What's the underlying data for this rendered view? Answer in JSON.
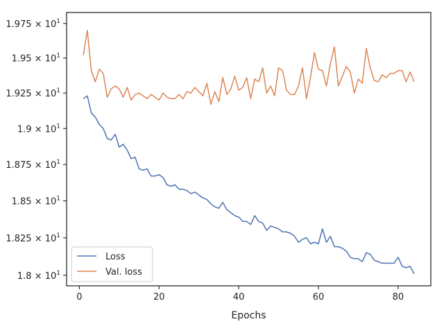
{
  "chart_data": {
    "type": "line",
    "title": "",
    "xlabel": "Epochs",
    "ylabel": "",
    "xlim": [
      -3.2,
      88.2
    ],
    "ylim": [
      17.93,
      19.83
    ],
    "xticks": [
      0,
      20,
      40,
      60,
      80
    ],
    "xtick_labels": [
      "0",
      "20",
      "40",
      "60",
      "80"
    ],
    "yticks": [
      18.0,
      18.25,
      18.5,
      18.75,
      19.0,
      19.25,
      19.5,
      19.75
    ],
    "ytick_labels": [
      {
        "mantissa": "1.8",
        "base": "× 10",
        "exp": "1"
      },
      {
        "mantissa": "1.825",
        "base": "× 10",
        "exp": "1"
      },
      {
        "mantissa": "1.85",
        "base": "× 10",
        "exp": "1"
      },
      {
        "mantissa": "1.875",
        "base": "× 10",
        "exp": "1"
      },
      {
        "mantissa": "1.9",
        "base": "× 10",
        "exp": "1"
      },
      {
        "mantissa": "1.925",
        "base": "× 10",
        "exp": "1"
      },
      {
        "mantissa": "1.95",
        "base": "× 10",
        "exp": "1"
      },
      {
        "mantissa": "1.975",
        "base": "× 10",
        "exp": "1"
      }
    ],
    "yscale": "log",
    "grid": false,
    "legend_position": "lower-left",
    "x": [
      1,
      2,
      3,
      4,
      5,
      6,
      7,
      8,
      9,
      10,
      11,
      12,
      13,
      14,
      15,
      16,
      17,
      18,
      19,
      20,
      21,
      22,
      23,
      24,
      25,
      26,
      27,
      28,
      29,
      30,
      31,
      32,
      33,
      34,
      35,
      36,
      37,
      38,
      39,
      40,
      41,
      42,
      43,
      44,
      45,
      46,
      47,
      48,
      49,
      50,
      51,
      52,
      53,
      54,
      55,
      56,
      57,
      58,
      59,
      60,
      61,
      62,
      63,
      64,
      65,
      66,
      67,
      68,
      69,
      70,
      71,
      72,
      73,
      74,
      75,
      76,
      77,
      78,
      79,
      80,
      81,
      82,
      83,
      84
    ],
    "series": [
      {
        "name": "Loss",
        "color": "#4c72b0",
        "values": [
          19.21,
          19.23,
          19.11,
          19.08,
          19.03,
          19.0,
          18.93,
          18.92,
          18.96,
          18.87,
          18.89,
          18.85,
          18.79,
          18.8,
          18.72,
          18.71,
          18.72,
          18.67,
          18.67,
          18.68,
          18.66,
          18.61,
          18.6,
          18.61,
          18.58,
          18.58,
          18.57,
          18.55,
          18.56,
          18.54,
          18.52,
          18.51,
          18.48,
          18.46,
          18.45,
          18.49,
          18.44,
          18.42,
          18.4,
          18.39,
          18.36,
          18.36,
          18.34,
          18.4,
          18.36,
          18.35,
          18.3,
          18.33,
          18.32,
          18.31,
          18.29,
          18.29,
          18.28,
          18.26,
          18.22,
          18.24,
          18.25,
          18.21,
          18.22,
          18.21,
          18.31,
          18.22,
          18.26,
          18.19,
          18.19,
          18.18,
          18.16,
          18.12,
          18.11,
          18.11,
          18.09,
          18.15,
          18.14,
          18.1,
          18.09,
          18.08,
          18.08,
          18.08,
          18.08,
          18.12,
          18.06,
          18.05,
          18.06,
          18.01
        ]
      },
      {
        "name": "Val. loss",
        "color": "#dd8452",
        "values": [
          19.52,
          19.7,
          19.41,
          19.33,
          19.42,
          19.39,
          19.22,
          19.28,
          19.3,
          19.28,
          19.22,
          19.29,
          19.2,
          19.24,
          19.25,
          19.23,
          19.21,
          19.24,
          19.22,
          19.2,
          19.25,
          19.22,
          19.21,
          19.21,
          19.24,
          19.21,
          19.26,
          19.25,
          19.29,
          19.26,
          19.23,
          19.32,
          19.17,
          19.26,
          19.19,
          19.36,
          19.24,
          19.28,
          19.37,
          19.27,
          19.29,
          19.36,
          19.21,
          19.35,
          19.33,
          19.43,
          19.25,
          19.3,
          19.23,
          19.43,
          19.41,
          19.27,
          19.24,
          19.24,
          19.3,
          19.43,
          19.21,
          19.36,
          19.54,
          19.42,
          19.41,
          19.3,
          19.46,
          19.58,
          19.3,
          19.37,
          19.44,
          19.4,
          19.25,
          19.35,
          19.32,
          19.57,
          19.43,
          19.34,
          19.33,
          19.38,
          19.36,
          19.39,
          19.39,
          19.41,
          19.41,
          19.33,
          19.4,
          19.33
        ]
      }
    ]
  }
}
